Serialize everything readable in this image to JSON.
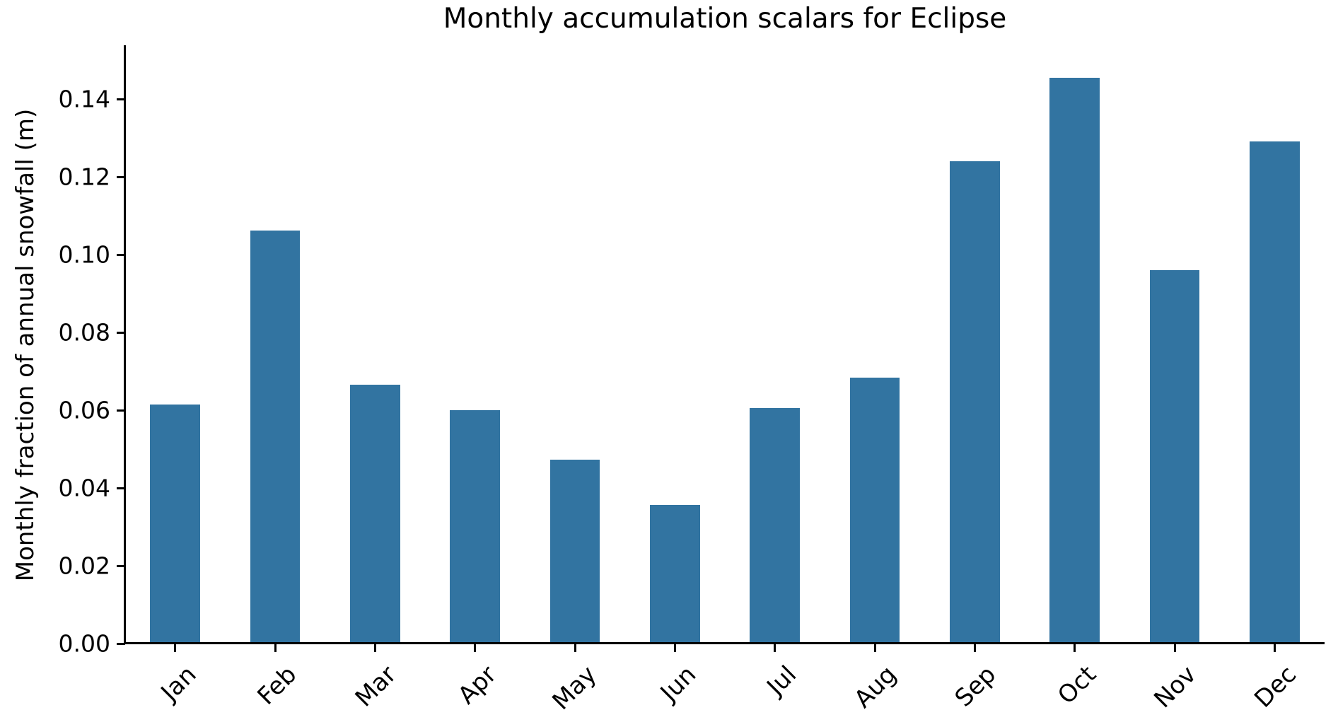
{
  "chart_data": {
    "type": "bar",
    "title": "Monthly accumulation scalars for Eclipse",
    "xlabel": "",
    "ylabel": "Monthly fraction of annual snowfall (m)",
    "categories": [
      "Jan",
      "Feb",
      "Mar",
      "Apr",
      "May",
      "Jun",
      "Jul",
      "Aug",
      "Sep",
      "Oct",
      "Nov",
      "Dec"
    ],
    "values": [
      0.0615,
      0.1062,
      0.0666,
      0.06,
      0.0472,
      0.0357,
      0.0606,
      0.0684,
      0.1241,
      0.1455,
      0.0961,
      0.1291
    ],
    "ylim": [
      0,
      0.1533
    ],
    "yticks": {
      "values": [
        0.0,
        0.02,
        0.04,
        0.06,
        0.08,
        0.1,
        0.12,
        0.14
      ],
      "labels": [
        "0.00",
        "0.02",
        "0.04",
        "0.06",
        "0.08",
        "0.10",
        "0.12",
        "0.14"
      ]
    },
    "grid": "off",
    "legend": "none",
    "x_tick_rotation_deg": 45,
    "colors": {
      "bar": "#3274a1",
      "axis": "#000000",
      "text": "#000000",
      "background": "#ffffff"
    }
  }
}
